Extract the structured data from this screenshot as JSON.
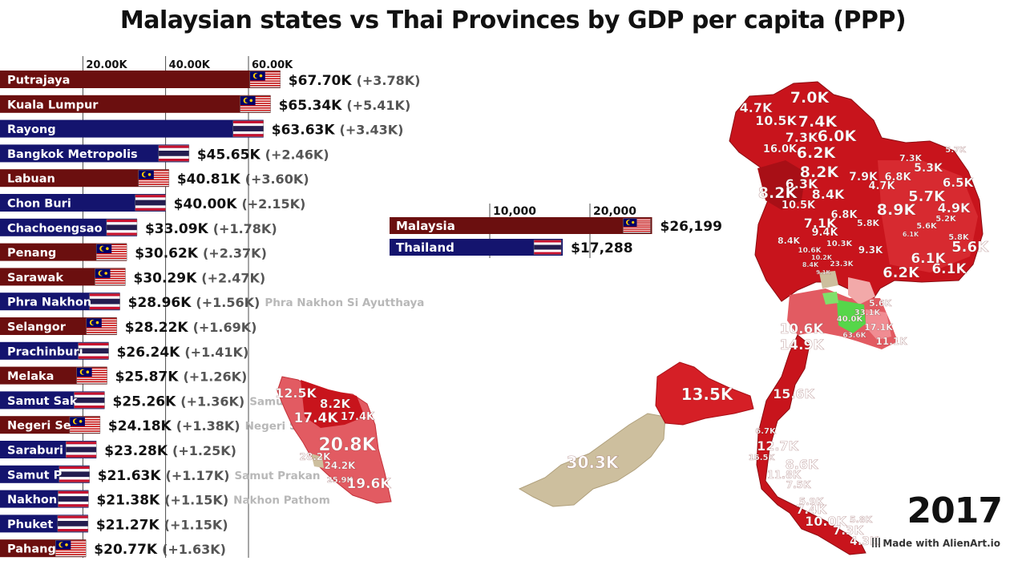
{
  "title": "Malaysian states vs Thai Provinces by GDP per capita (PPP)",
  "year": "2017",
  "credit": "Made with AlienArt.io",
  "colors": {
    "malaysia": "#6b0f0f",
    "thailand": "#14146e",
    "label_gray": "#b8b8b8",
    "map_red": "#d51f26",
    "map_red_dark": "#b5121b",
    "map_pink": "#e8737a",
    "map_light": "#f2a9a9",
    "map_tan": "#cdbf9e",
    "map_green": "#56d64a"
  },
  "chart_data": [
    {
      "type": "bar",
      "orientation": "horizontal",
      "xlim": [
        0,
        70000
      ],
      "ticks": [
        "20.00K",
        "40.00K",
        "60.00K"
      ],
      "tick_values": [
        20000,
        40000,
        60000
      ],
      "categories": [
        "Putrajaya",
        "Kuala Lumpur",
        "Rayong",
        "Bangkok Metropolis",
        "Labuan",
        "Chon Buri",
        "Chachoengsao",
        "Penang",
        "Sarawak",
        "Phra Nakhon",
        "Selangor",
        "Prachinburi",
        "Melaka",
        "Samut Sak",
        "Negeri Se",
        "Saraburi",
        "Samut P",
        "Nakhon",
        "Phuket",
        "Pahang"
      ],
      "country": [
        "MY",
        "MY",
        "TH",
        "TH",
        "MY",
        "TH",
        "TH",
        "MY",
        "MY",
        "TH",
        "MY",
        "TH",
        "MY",
        "TH",
        "MY",
        "TH",
        "TH",
        "TH",
        "TH",
        "MY"
      ],
      "values": [
        67700,
        65340,
        63630,
        45650,
        40810,
        40000,
        33090,
        30620,
        30290,
        28960,
        28220,
        26240,
        25870,
        25260,
        24180,
        23280,
        21630,
        21380,
        21270,
        20770
      ],
      "value_labels": [
        "$67.70K",
        "$65.34K",
        "$63.63K",
        "$45.65K",
        "$40.81K",
        "$40.00K",
        "$33.09K",
        "$30.62K",
        "$30.29K",
        "$28.96K",
        "$28.22K",
        "$26.24K",
        "$25.87K",
        "$25.26K",
        "$24.18K",
        "$23.28K",
        "$21.63K",
        "$21.38K",
        "$21.27K",
        "$20.77K"
      ],
      "change_labels": [
        "(+3.78K)",
        "(+5.41K)",
        "(+3.43K)",
        "(+2.46K)",
        "(+3.60K)",
        "(+2.15K)",
        "(+1.78K)",
        "(+2.37K)",
        "(+2.47K)",
        "(+1.56K)",
        "(+1.69K)",
        "(+1.41K)",
        "(+1.26K)",
        "(+1.36K)",
        "(+1.38K)",
        "(+1.25K)",
        "(+1.17K)",
        "(+1.15K)",
        "(+1.15K)",
        "(+1.63K)"
      ],
      "full_names": [
        "",
        "",
        "",
        "",
        "",
        "",
        "",
        "",
        "",
        "Phra Nakhon Si Ayutthaya",
        "",
        "",
        "",
        "Samut",
        "Negeri Se",
        "",
        "Samut Prakan",
        "Nakhon Pathom",
        "",
        ""
      ]
    },
    {
      "type": "bar",
      "orientation": "horizontal",
      "xlim": [
        0,
        27000
      ],
      "ticks": [
        "10,000",
        "20,000"
      ],
      "tick_values": [
        10000,
        20000
      ],
      "categories": [
        "Malaysia",
        "Thailand"
      ],
      "country": [
        "MY",
        "TH"
      ],
      "values": [
        26199,
        17288
      ],
      "value_labels": [
        "$26,199",
        "$17,288"
      ]
    }
  ],
  "map_labels": {
    "thailand": [
      "7.0K",
      "4.7K",
      "10.5K",
      "7.4K",
      "7.3K",
      "6.0K",
      "16.0K",
      "6.2K",
      "5.7K",
      "7.3K",
      "5.3K",
      "8.2K",
      "7.9K",
      "6.8K",
      "6.3K",
      "4.7K",
      "6.5K",
      "8.2K",
      "8.4K",
      "5.7K",
      "10.5K",
      "8.9K",
      "4.9K",
      "6.8K",
      "5.2K",
      "7.1K",
      "5.8K",
      "5.6K",
      "9.4K",
      "6.1K",
      "5.8K",
      "8.4K",
      "10.3K",
      "5.6K",
      "10.6K",
      "9.3K",
      "10.2K",
      "6.1K",
      "8.4K",
      "23.3K",
      "6.2K",
      "6.1K",
      "9.1K",
      "5.6K",
      "33.1K",
      "40.0K",
      "17.1K",
      "63.6K",
      "10.6K",
      "11.1K",
      "14.9K",
      "15.6K",
      "6.7K",
      "12.7K",
      "15.5K",
      "8.6K",
      "11.8K",
      "7.5K",
      "5.9K",
      "7.4K",
      "10.0K",
      "5.8K",
      "7.3K",
      "4.3K"
    ],
    "peninsular_malaysia": [
      "12.5K",
      "8.2K",
      "17.4K",
      "17.4K",
      "20.8K",
      "28.2K",
      "24.2K",
      "25.9K",
      "19.6K"
    ],
    "borneo": [
      "13.5K",
      "30.3K"
    ]
  }
}
